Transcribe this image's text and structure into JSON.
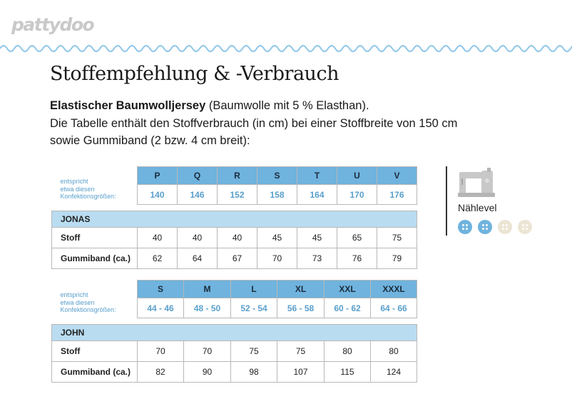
{
  "brand": "pattydoo",
  "title": "Stoffempfehlung & -Verbrauch",
  "intro": {
    "fabric_bold": "Elastischer Baumwolljersey",
    "fabric_rest": " (Baumwolle mit 5 % Elasthan).",
    "line2": "Die Tabelle enthält den Stoffverbrauch (in cm) bei einer Stoffbreite von 150 cm",
    "line3": "sowie Gummiband (2 bzw. 4 cm breit):"
  },
  "conf_label": [
    "entspricht",
    "etwa diesen",
    "Konfektionsgrößen:"
  ],
  "table_jonas": {
    "sizes": [
      "P",
      "Q",
      "R",
      "S",
      "T",
      "U",
      "V"
    ],
    "conf_sizes": [
      "140",
      "146",
      "152",
      "158",
      "164",
      "170",
      "176"
    ],
    "pattern": "JONAS",
    "rows": [
      {
        "label": "Stoff",
        "values": [
          "40",
          "40",
          "40",
          "45",
          "45",
          "65",
          "75"
        ]
      },
      {
        "label": "Gummiband (ca.)",
        "values": [
          "62",
          "64",
          "67",
          "70",
          "73",
          "76",
          "79"
        ]
      }
    ]
  },
  "table_john": {
    "sizes": [
      "S",
      "M",
      "L",
      "XL",
      "XXL",
      "XXXL"
    ],
    "conf_sizes": [
      "44 - 46",
      "48 - 50",
      "52 - 54",
      "56 - 58",
      "60 - 62",
      "64 - 66"
    ],
    "pattern": "JOHN",
    "rows": [
      {
        "label": "Stoff",
        "values": [
          "70",
          "70",
          "75",
          "75",
          "80",
          "80"
        ]
      },
      {
        "label": "Gummiband (ca.)",
        "values": [
          "82",
          "90",
          "98",
          "107",
          "115",
          "124"
        ]
      }
    ]
  },
  "sew_level": {
    "label": "Nählevel",
    "level": 2,
    "max": 4,
    "colors": {
      "active": "#6fb3de",
      "inactive": "#ece5d4"
    },
    "icon": "sewing-machine-icon"
  }
}
